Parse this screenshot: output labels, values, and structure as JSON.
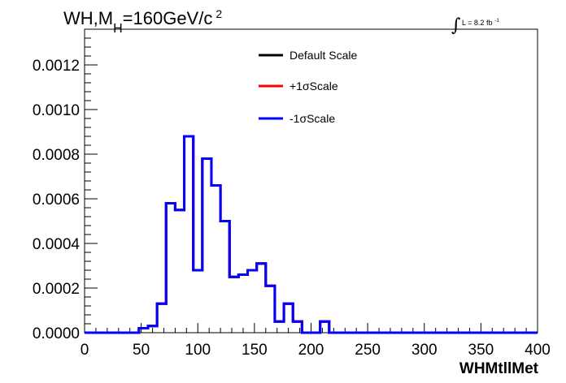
{
  "chart_data": {
    "type": "line",
    "style": "step-histogram",
    "title": {
      "prefix": "WH,M",
      "subscript": "H",
      "suffix": "=160GeV/c",
      "superscript": "2"
    },
    "lumi_label": {
      "integral_symbol": "∫",
      "text": "L = 8.2 fb",
      "superscript": "-1"
    },
    "xlabel": "WHMtllMet",
    "ylabel": "",
    "xlim": [
      0,
      400
    ],
    "ylim": [
      0,
      0.00136
    ],
    "x_ticks": [
      0,
      50,
      100,
      150,
      200,
      250,
      300,
      350,
      400
    ],
    "x_tick_labels": [
      "0",
      "50",
      "100",
      "150",
      "200",
      "250",
      "300",
      "350",
      "400"
    ],
    "y_ticks": [
      0,
      0.0002,
      0.0004,
      0.0006,
      0.0008,
      0.001,
      0.0012
    ],
    "y_tick_labels": [
      "0.0000",
      "0.0002",
      "0.0004",
      "0.0006",
      "0.0008",
      "0.0010",
      "0.0012"
    ],
    "bin_width": 8,
    "bin_low_edges": [
      0,
      8,
      16,
      24,
      32,
      40,
      48,
      56,
      64,
      72,
      80,
      88,
      96,
      104,
      112,
      120,
      128,
      136,
      144,
      152,
      160,
      168,
      176,
      184,
      192,
      200,
      208,
      216,
      224,
      232,
      240,
      248,
      256,
      264,
      272,
      280,
      288,
      296,
      304,
      312,
      320,
      328,
      336,
      344,
      352,
      360,
      368,
      376,
      384,
      392
    ],
    "series": [
      {
        "name": "Default Scale",
        "color": "#000000",
        "values": [
          0,
          0,
          0,
          0,
          0,
          0,
          2e-05,
          3e-05,
          0.00013,
          0.00058,
          0.00055,
          0.00088,
          0.00028,
          0.00078,
          0.00066,
          0.0005,
          0.00025,
          0.00026,
          0.00028,
          0.00031,
          0.00021,
          5e-05,
          0.00013,
          5e-05,
          0,
          0,
          5e-05,
          0,
          0,
          0,
          0,
          0,
          0,
          0,
          0,
          0,
          0,
          0,
          0,
          0,
          0,
          0,
          0,
          0,
          0,
          0,
          0,
          0,
          0,
          0
        ]
      },
      {
        "name": "+1σScale",
        "color": "#ff0000",
        "values": [
          0,
          0,
          0,
          0,
          0,
          0,
          2e-05,
          3e-05,
          0.00013,
          0.00058,
          0.00055,
          0.00088,
          0.00028,
          0.00078,
          0.00066,
          0.0005,
          0.00025,
          0.00026,
          0.00028,
          0.00031,
          0.00021,
          5e-05,
          0.00013,
          5e-05,
          0,
          0,
          5e-05,
          0,
          0,
          0,
          0,
          0,
          0,
          0,
          0,
          0,
          0,
          0,
          0,
          0,
          0,
          0,
          0,
          0,
          0,
          0,
          0,
          0,
          0,
          0
        ]
      },
      {
        "name": "-1σScale",
        "color": "#0000ff",
        "values": [
          0,
          0,
          0,
          0,
          0,
          0,
          2e-05,
          3e-05,
          0.00013,
          0.00058,
          0.00055,
          0.00088,
          0.00028,
          0.00078,
          0.00066,
          0.0005,
          0.00025,
          0.00026,
          0.00028,
          0.00031,
          0.00021,
          5e-05,
          0.00013,
          5e-05,
          0,
          0,
          5e-05,
          0,
          0,
          0,
          0,
          0,
          0,
          0,
          0,
          0,
          0,
          0,
          0,
          0,
          0,
          0,
          0,
          0,
          0,
          0,
          0,
          0,
          0,
          0
        ]
      }
    ],
    "legend": {
      "position": "top-center",
      "border": false
    },
    "grid": false
  }
}
